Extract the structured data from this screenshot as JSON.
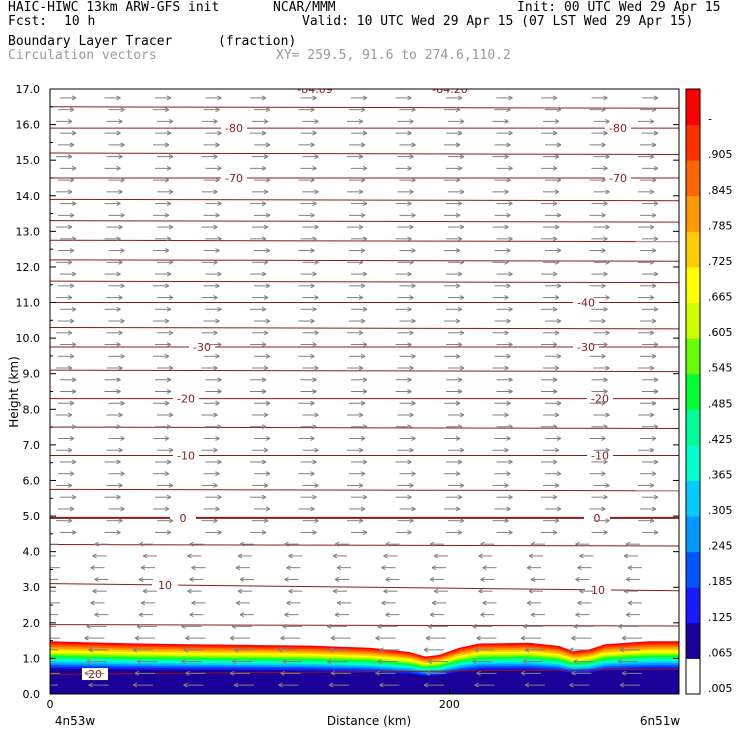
{
  "header": {
    "model": "HAIC-HIWC 13km ARW-GFS init",
    "org": "NCAR/MMM",
    "init": "Init: 00 UTC Wed 29 Apr 15",
    "fcst_label": "Fcst:",
    "fcst_value": "10 h",
    "valid": "Valid: 10 UTC Wed 29 Apr 15 (07 LST Wed 29 Apr 15)",
    "field1_name": "Boundary Layer Tracer",
    "field1_unit": "(fraction)",
    "field2_name": "Circulation vectors",
    "xy_info": "XY= 259.5, 91.6 to 274.6,110.2"
  },
  "colors": {
    "contour": "#8b1a1a",
    "vector": "#808080",
    "frame": "#000000",
    "shade_stops": [
      "#ff0000",
      "#ff3300",
      "#ff6600",
      "#ff9900",
      "#ffcc00",
      "#ffff00",
      "#ccff00",
      "#66ff00",
      "#00ff33",
      "#00ff99",
      "#00ffcc",
      "#00ccff",
      "#0099ff",
      "#0055ff",
      "#1a1aff",
      "#1a0099"
    ]
  },
  "chart_data": {
    "type": "heatmap",
    "title": "Boundary Layer Tracer",
    "unit": "(fraction)",
    "xlabel": "Distance (km)",
    "ylabel": "Height (km)",
    "x_ticks": [
      "0",
      "200"
    ],
    "x_tick_values": [
      0,
      200
    ],
    "xlim": [
      0,
      315
    ],
    "ylim": [
      0,
      17
    ],
    "y_ticks": [
      "0.0",
      "1.0",
      "2.0",
      "3.0",
      "4.0",
      "5.0",
      "6.0",
      "7.0",
      "8.0",
      "9.0",
      "10.0",
      "11.0",
      "12.0",
      "13.0",
      "14.0",
      "15.0",
      "16.0",
      "17.0"
    ],
    "x_endpoint_labels": [
      "4n53w",
      "6n51w"
    ],
    "colorbar_labels": [
      ".005",
      ".065",
      ".125",
      ".185",
      ".245",
      ".305",
      ".365",
      ".425",
      ".485",
      ".545",
      ".605",
      ".665",
      ".725",
      ".785",
      ".845",
      ".905",
      "-"
    ],
    "tracer_top_height_km": [
      [
        0,
        1.48
      ],
      [
        20,
        1.45
      ],
      [
        45,
        1.42
      ],
      [
        70,
        1.4
      ],
      [
        100,
        1.38
      ],
      [
        130,
        1.36
      ],
      [
        160,
        1.3
      ],
      [
        180,
        1.18
      ],
      [
        188,
        1.05
      ],
      [
        195,
        1.1
      ],
      [
        205,
        1.3
      ],
      [
        215,
        1.42
      ],
      [
        240,
        1.44
      ],
      [
        255,
        1.35
      ],
      [
        262,
        1.2
      ],
      [
        270,
        1.25
      ],
      [
        278,
        1.4
      ],
      [
        300,
        1.48
      ],
      [
        315,
        1.48
      ]
    ],
    "temperature_contours": [
      {
        "label": "20",
        "heights_km": [
          0.55,
          0.7
        ]
      },
      {
        "label": "10",
        "heights_km": [
          3.1,
          2.9
        ]
      },
      {
        "label": "0",
        "heights_km": [
          4.95,
          4.95
        ]
      },
      {
        "label": "-10",
        "heights_km": [
          6.7,
          6.7
        ]
      },
      {
        "label": "-20",
        "heights_km": [
          8.3,
          8.3
        ]
      },
      {
        "label": "-30",
        "heights_km": [
          9.75,
          9.75
        ]
      },
      {
        "label": "-40",
        "heights_km": [
          11.0,
          11.0
        ]
      },
      {
        "label": "-70",
        "heights_km": [
          14.5,
          14.5
        ]
      },
      {
        "label": "-80",
        "heights_km": [
          15.9,
          15.9
        ]
      },
      {
        "label": "-84.09",
        "heights_km": [
          17.0,
          17.0
        ]
      },
      {
        "label": "-84.20",
        "heights_km": [
          17.0,
          17.0
        ]
      }
    ],
    "unlabeled_contour_heights_km": [
      1.95,
      4.2,
      5.75,
      7.5,
      9.1,
      10.3,
      11.6,
      12.2,
      12.75,
      13.3,
      13.9,
      15.2,
      16.5
    ],
    "vectors": {
      "lower_direction": "westward",
      "upper_direction": "eastward",
      "reversal_height_km": 4.5
    },
    "grid": false,
    "legend": "right colorbar"
  }
}
